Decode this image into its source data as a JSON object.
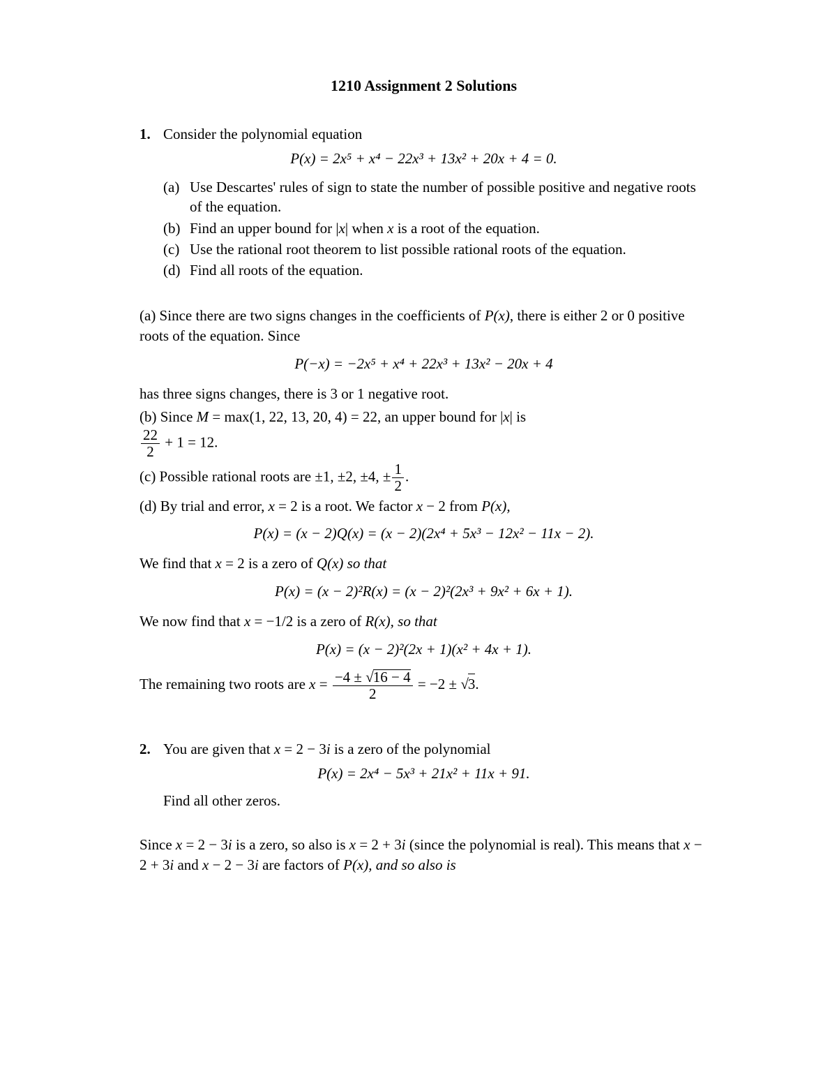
{
  "title": "1210 Assignment 2 Solutions",
  "p1": {
    "num": "1.",
    "intro": "Consider the polynomial equation",
    "eq_main_lhs": "P",
    "eq_main": "(x) = 2x⁵ + x⁴ − 22x³ + 13x² + 20x + 4 = 0.",
    "a_label": "(a)",
    "a_text": "Use Descartes' rules of sign to state the number of possible positive and negative roots of the equation.",
    "b_label": "(b)",
    "b_text_1": "Find an upper bound for |",
    "b_text_x": "x",
    "b_text_2": "| when ",
    "b_text_x2": "x",
    "b_text_3": " is a root of the equation.",
    "c_label": "(c)",
    "c_text": "Use the rational root theorem to list possible rational roots of the equation.",
    "d_label": "(d)",
    "d_text": "Find all roots of the equation.",
    "sol_a_1": "(a) Since there are two signs changes in the coefficients of ",
    "sol_a_P": "P",
    "sol_a_x": "(x)",
    "sol_a_2": ", there is either 2 or 0 positive roots of the equation. Since",
    "eq_pnegx": "(−x) = −2x⁵ + x⁴ + 22x³ + 13x² − 20x + 4",
    "sol_a_3": "has three signs changes, there is 3 or 1 negative root.",
    "sol_b_1": "(b) Since ",
    "sol_b_M": "M",
    "sol_b_2": " = max(1, 22, 13, 20, 4) = 22, an upper bound for |",
    "sol_b_x": "x",
    "sol_b_3": "| is",
    "frac_22": "22",
    "frac_2": "2",
    "sol_b_4": " + 1 = 12.",
    "sol_c_1": "(c) Possible rational roots are ±1, ±2, ±4, ±",
    "frac_half_num": "1",
    "frac_half_den": "2",
    "sol_c_2": ".",
    "sol_d_1": "(d) By trial and error, ",
    "sol_d_x2": "x",
    "sol_d_2": " = 2 is a root. We factor ",
    "sol_d_xm2": "x",
    "sol_d_3": " − 2 from ",
    "sol_d_P": "P",
    "sol_d_4": "(x),",
    "eq_Q": "(x) = (x − 2)Q(x) = (x − 2)(2x⁴ + 5x³ − 12x² − 11x − 2).",
    "sol_d_5": "We find that ",
    "sol_d_6": " = 2 is a zero of ",
    "sol_d_Q": "Q",
    "sol_d_7": "(x) so that",
    "eq_R": "(x) = (x − 2)²R(x) = (x − 2)²(2x³ + 9x² + 6x + 1).",
    "sol_d_8": "We now find that ",
    "sol_d_9": " = −1/2 is a zero of ",
    "sol_d_R": "R",
    "sol_d_10": "(x), so that",
    "eq_final": "(x) = (x − 2)²(2x + 1)(x² + 4x + 1).",
    "sol_d_11": "The remaining two roots are ",
    "sol_d_12": " = ",
    "quad_num": "−4 ± ",
    "quad_rad": "16 − 4",
    "quad_den": "2",
    "sol_d_13": " = −2 ± ",
    "rad3": "3",
    "sol_d_14": "."
  },
  "p2": {
    "num": "2.",
    "intro_1": "You are given that ",
    "intro_x": "x",
    "intro_2": " = 2 − 3",
    "intro_i": "i",
    "intro_3": " is a zero of the polynomial",
    "eq": "(x) = 2x⁴ − 5x³ + 21x² + 11x + 91.",
    "find": "Find all other zeros.",
    "sol_1": "Since ",
    "sol_2": " = 2 − 3",
    "sol_3": " is a zero, so also is ",
    "sol_4": " = 2 + 3",
    "sol_5": " (since the polynomial is real). This means that ",
    "sol_6": " − 2 + 3",
    "sol_7": " and ",
    "sol_8": " − 2 − 3",
    "sol_9": " are factors of ",
    "sol_P": "P",
    "sol_10": "(x), and so also is"
  }
}
